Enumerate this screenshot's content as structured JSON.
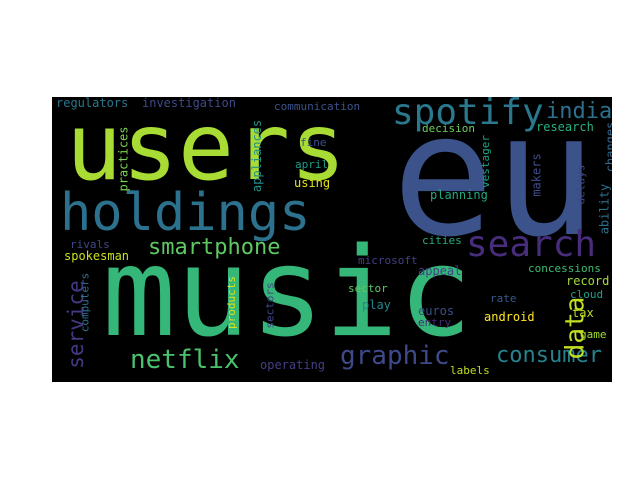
{
  "wordcloud": {
    "users": {
      "text": "users",
      "color": "#a8db34"
    },
    "eu": {
      "text": "eu",
      "color": "#3b528b"
    },
    "music": {
      "text": "music",
      "color": "#35b779"
    },
    "holdings": {
      "text": "holdings",
      "color": "#2c728e"
    },
    "spotify": {
      "text": "spotify",
      "color": "#2a788e"
    },
    "search": {
      "text": "search",
      "color": "#472d7b"
    },
    "smartphone": {
      "text": "smartphone",
      "color": "#5ec962"
    },
    "india": {
      "text": "india",
      "color": "#2d708e"
    },
    "netflix": {
      "text": "netflix",
      "color": "#4ac16d"
    },
    "graphic": {
      "text": "graphic",
      "color": "#3e4989"
    },
    "consumer": {
      "text": "consumer",
      "color": "#26828e"
    },
    "data": {
      "text": "data",
      "color": "#c2df23"
    },
    "service": {
      "text": "service",
      "color": "#443983"
    },
    "regulators": {
      "text": "regulators",
      "color": "#2a788e"
    },
    "investigation": {
      "text": "investigation",
      "color": "#3e4a89"
    },
    "communication": {
      "text": "communication",
      "color": "#3b528b"
    },
    "research": {
      "text": "research",
      "color": "#29af7f"
    },
    "decision": {
      "text": "decision",
      "color": "#6ccd5a"
    },
    "changes": {
      "text": "changes",
      "color": "#31688e"
    },
    "practices": {
      "text": "practices",
      "color": "#7ad151"
    },
    "appliances": {
      "text": "appliances",
      "color": "#21918c"
    },
    "fine": {
      "text": "fine",
      "color": "#3b528b"
    },
    "april": {
      "text": "april",
      "color": "#1f9e89"
    },
    "using": {
      "text": "using",
      "color": "#e5e419"
    },
    "vestager": {
      "text": "vestager",
      "color": "#20a386"
    },
    "makers": {
      "text": "makers",
      "color": "#3e4a89"
    },
    "delays": {
      "text": "delays",
      "color": "#404688"
    },
    "ability": {
      "text": "ability",
      "color": "#2d708e"
    },
    "planning": {
      "text": "planning",
      "color": "#22a884"
    },
    "rivals": {
      "text": "rivals",
      "color": "#3e4989"
    },
    "spokesman": {
      "text": "spokesman",
      "color": "#c8e020"
    },
    "cities": {
      "text": "cities",
      "color": "#27ad81"
    },
    "microsoft": {
      "text": "microsoft",
      "color": "#424086"
    },
    "appeal": {
      "text": "appeal",
      "color": "#414487"
    },
    "concessions": {
      "text": "concessions",
      "color": "#3fbc73"
    },
    "record": {
      "text": "record",
      "color": "#a2da37"
    },
    "cloud": {
      "text": "cloud",
      "color": "#1fa088"
    },
    "tax": {
      "text": "tax",
      "color": "#bddf26"
    },
    "computers": {
      "text": "computers",
      "color": "#2c718e"
    },
    "sector": {
      "text": "sector",
      "color": "#5ec962"
    },
    "play": {
      "text": "play",
      "color": "#24868e"
    },
    "rate": {
      "text": "rate",
      "color": "#38598c"
    },
    "euros": {
      "text": "euros",
      "color": "#3d4e8a"
    },
    "entry": {
      "text": "entry",
      "color": "#472a7a"
    },
    "android": {
      "text": "android",
      "color": "#fde725"
    },
    "game": {
      "text": "game",
      "color": "#a5db36"
    },
    "products": {
      "text": "products",
      "color": "#d8e219"
    },
    "sectors": {
      "text": "sectors",
      "color": "#3f4788"
    },
    "operating": {
      "text": "operating",
      "color": "#424086"
    },
    "labels": {
      "text": "labels",
      "color": "#c0df25"
    }
  }
}
